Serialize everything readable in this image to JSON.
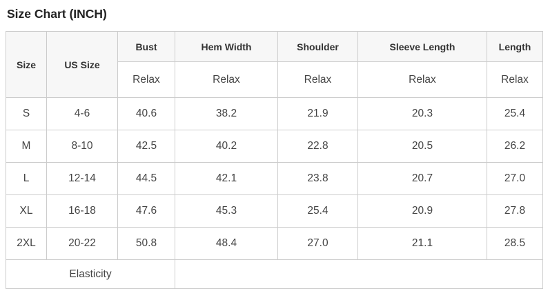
{
  "title": "Size Chart (INCH)",
  "unit": "INCH",
  "colors": {
    "us_size_header_bg": "#3d3d3d",
    "us_size_header_text": "#ffffff",
    "column_header_bg": "#f7f7f7",
    "border": "#cccccc",
    "cell_text": "#444444",
    "title_text": "#222222"
  },
  "chart_data": {
    "type": "table",
    "title": "Size Chart (INCH)",
    "unit": "INCH",
    "columns": [
      "Size",
      "US Size",
      "Bust",
      "Hem Width",
      "Shoulder",
      "Sleeve Length",
      "Length"
    ],
    "fit_row": [
      "",
      "",
      "Relax",
      "Relax",
      "Relax",
      "Relax",
      "Relax"
    ],
    "rows": [
      [
        "S",
        "4-6",
        "40.6",
        "38.2",
        "21.9",
        "20.3",
        "25.4"
      ],
      [
        "M",
        "8-10",
        "42.5",
        "40.2",
        "22.8",
        "20.5",
        "26.2"
      ],
      [
        "L",
        "12-14",
        "44.5",
        "42.1",
        "23.8",
        "20.7",
        "27.0"
      ],
      [
        "XL",
        "16-18",
        "47.6",
        "45.3",
        "25.4",
        "20.9",
        "27.8"
      ],
      [
        "2XL",
        "20-22",
        "50.8",
        "48.4",
        "27.0",
        "21.1",
        "28.5"
      ]
    ],
    "footer_row": [
      "Elasticity",
      ""
    ]
  }
}
